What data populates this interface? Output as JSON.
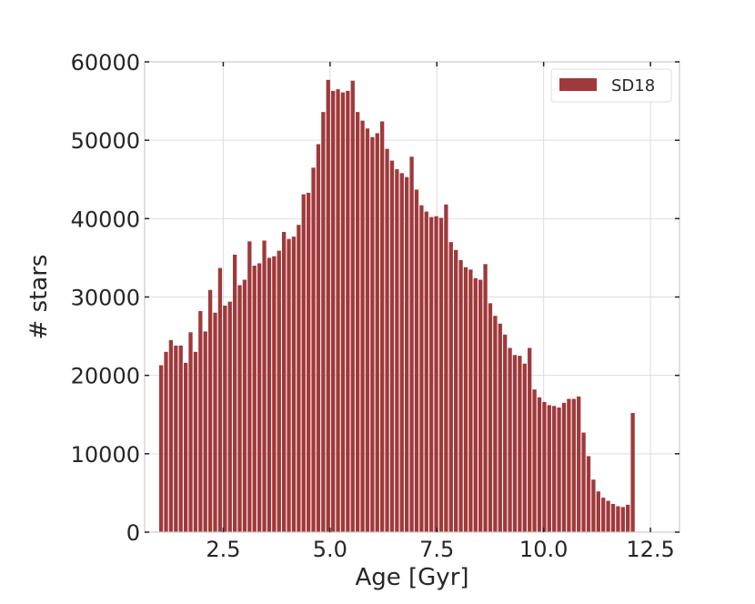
{
  "chart_data": {
    "type": "bar",
    "xlabel": "Age [Gyr]",
    "ylabel": "# stars",
    "xlim": [
      0.66,
      13.18
    ],
    "ylim": [
      0,
      60000
    ],
    "xticks": [
      2.5,
      5.0,
      7.5,
      10.0,
      12.5
    ],
    "xtick_labels": [
      "2.5",
      "5.0",
      "7.5",
      "10.0",
      "12.5"
    ],
    "yticks": [
      0,
      10000,
      20000,
      30000,
      40000,
      50000,
      60000
    ],
    "ytick_labels": [
      "0",
      "10000",
      "20000",
      "30000",
      "40000",
      "50000",
      "60000"
    ],
    "grid": true,
    "legend_position": "top-right",
    "color": "#a0393b",
    "series": [
      {
        "name": "SD18",
        "bin_start": 1.0,
        "bin_width": 0.115,
        "values": [
          21300,
          23000,
          24500,
          23800,
          23800,
          21600,
          25500,
          23000,
          28200,
          25600,
          30900,
          28000,
          33700,
          28900,
          29400,
          35400,
          31500,
          32200,
          37100,
          34000,
          34300,
          37200,
          35000,
          35200,
          35900,
          38300,
          37400,
          37700,
          39200,
          43100,
          43300,
          46500,
          49500,
          53600,
          57700,
          56300,
          56500,
          56100,
          56300,
          57600,
          53600,
          52500,
          51500,
          50400,
          50900,
          52400,
          48900,
          47400,
          46300,
          45800,
          45300,
          47900,
          43700,
          41700,
          40900,
          40200,
          40300,
          40100,
          41800,
          37000,
          36000,
          34700,
          33800,
          33500,
          32400,
          32200,
          34200,
          29200,
          27600,
          26600,
          25200,
          23500,
          22600,
          22500,
          21500,
          23500,
          18200,
          17200,
          16600,
          16200,
          16100,
          15900,
          16500,
          17000,
          17000,
          17300,
          12700,
          9700,
          6700,
          5200,
          4400,
          4000,
          3600,
          3300,
          3200,
          3500,
          15200
        ]
      }
    ]
  }
}
